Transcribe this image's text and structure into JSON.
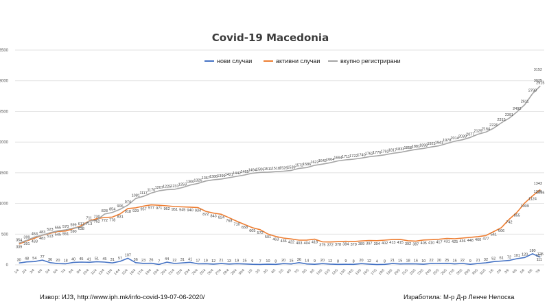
{
  "chart_data": {
    "type": "line",
    "title": "Covid-19 Macedonia",
    "xlabel": "",
    "ylabel": "",
    "ylim": [
      0,
      3500
    ],
    "yticks": [
      "0",
      "500",
      "1000",
      "1500",
      "2000",
      "2500",
      "3000",
      "3500"
    ],
    "grid": true,
    "legend_position": "top",
    "x": [
      "1/4",
      "2/4",
      "3/4",
      "4/4",
      "5/4",
      "6/4",
      "7/4",
      "8/4",
      "9/4",
      "10/4",
      "11/4",
      "12/4",
      "13/4",
      "14/4",
      "15/4",
      "16/4",
      "17/4",
      "18/4",
      "19/4",
      "20/4",
      "21/4",
      "22/4",
      "23/4",
      "24/4",
      "25/4",
      "26/4",
      "27/4",
      "28/4",
      "29/4",
      "30/4",
      "1/5",
      "2/5",
      "3/5",
      "4/5",
      "5/5",
      "6/5",
      "7/5",
      "8/5",
      "9/5",
      "10/5",
      "11/5",
      "12/5",
      "13/5",
      "14/5",
      "15/5",
      "16/5",
      "17/5",
      "18/5",
      "19/5",
      "20/5",
      "21/5",
      "22/5",
      "23/5",
      "24/5",
      "25/5",
      "26/5",
      "27/5",
      "28/5",
      "29/5",
      "30/5",
      "31/5",
      "1/6",
      "2/6",
      "3/6",
      "4/6",
      "5/6",
      "6/6",
      "7/6"
    ],
    "series": [
      {
        "name": "нови случаи",
        "color": "#4472c4",
        "values": [
          30,
          48,
          54,
          77,
          36,
          20,
          18,
          40,
          45,
          41,
          51,
          45,
          31,
          57,
          107,
          36,
          23,
          26,
          7,
          44,
          22,
          31,
          41,
          17,
          19,
          12,
          21,
          13,
          19,
          15,
          9,
          7,
          10,
          8,
          20,
          15,
          36,
          14,
          9,
          20,
          12,
          8,
          9,
          8,
          20,
          12,
          4,
          8,
          21,
          15,
          18,
          16,
          10,
          22,
          20,
          25,
          16,
          22,
          9,
          21,
          32,
          52,
          61,
          72,
          101,
          120,
          180,
          125
        ]
      },
      {
        "name": "активни случаи",
        "color": "#ed7d31",
        "values": [
          339,
          391,
          433,
          483,
          513,
          545,
          551,
          590,
          638,
          713,
          752,
          772,
          778,
          831,
          918,
          929,
          957,
          977,
          971,
          962,
          951,
          945,
          940,
          934,
          872,
          843,
          824,
          768,
          710,
          658,
          605,
          572,
          501,
          463,
          436,
          422,
          403,
          404,
          418,
          375,
          372,
          378,
          384,
          379,
          389,
          397,
          394,
          402,
          413,
          415,
          392,
          387,
          405,
          410,
          417,
          431,
          425,
          436,
          448,
          460,
          477,
          541,
          606,
          742,
          855,
          1009,
          1124,
          1226
        ]
      },
      {
        "name": "вкупно регистрирани",
        "color": "#a5a5a5",
        "values": [
          354,
          399,
          453,
          483,
          523,
          555,
          570,
          599,
          617,
          711,
          730,
          828,
          854,
          906,
          974,
          1081,
          1117,
          1170,
          1207,
          1225,
          1231,
          1259,
          1300,
          1326,
          1367,
          1386,
          1399,
          1421,
          1442,
          1465,
          1494,
          1506,
          1511,
          1518,
          1526,
          1539,
          1572,
          1586,
          1622,
          1642,
          1664,
          1694,
          1711,
          1722,
          1740,
          1762,
          1776,
          1792,
          1817,
          1833,
          1858,
          1881,
          1898,
          1921,
          1941,
          1978,
          2014,
          2039,
          2077,
          2129,
          2164,
          2226,
          2315,
          2391,
          2492,
          2611,
          2790,
          2915
        ]
      }
    ],
    "data_labels": [
      "3152",
      "3025",
      "1343",
      "1226",
      "127",
      "111"
    ]
  },
  "footer": {
    "source": "Извор: ИЈЗ, http://www.iph.mk/info-covid-19-07-06-2020/",
    "author": "Изработила: М-р Д-р Ленче Нелоска"
  }
}
